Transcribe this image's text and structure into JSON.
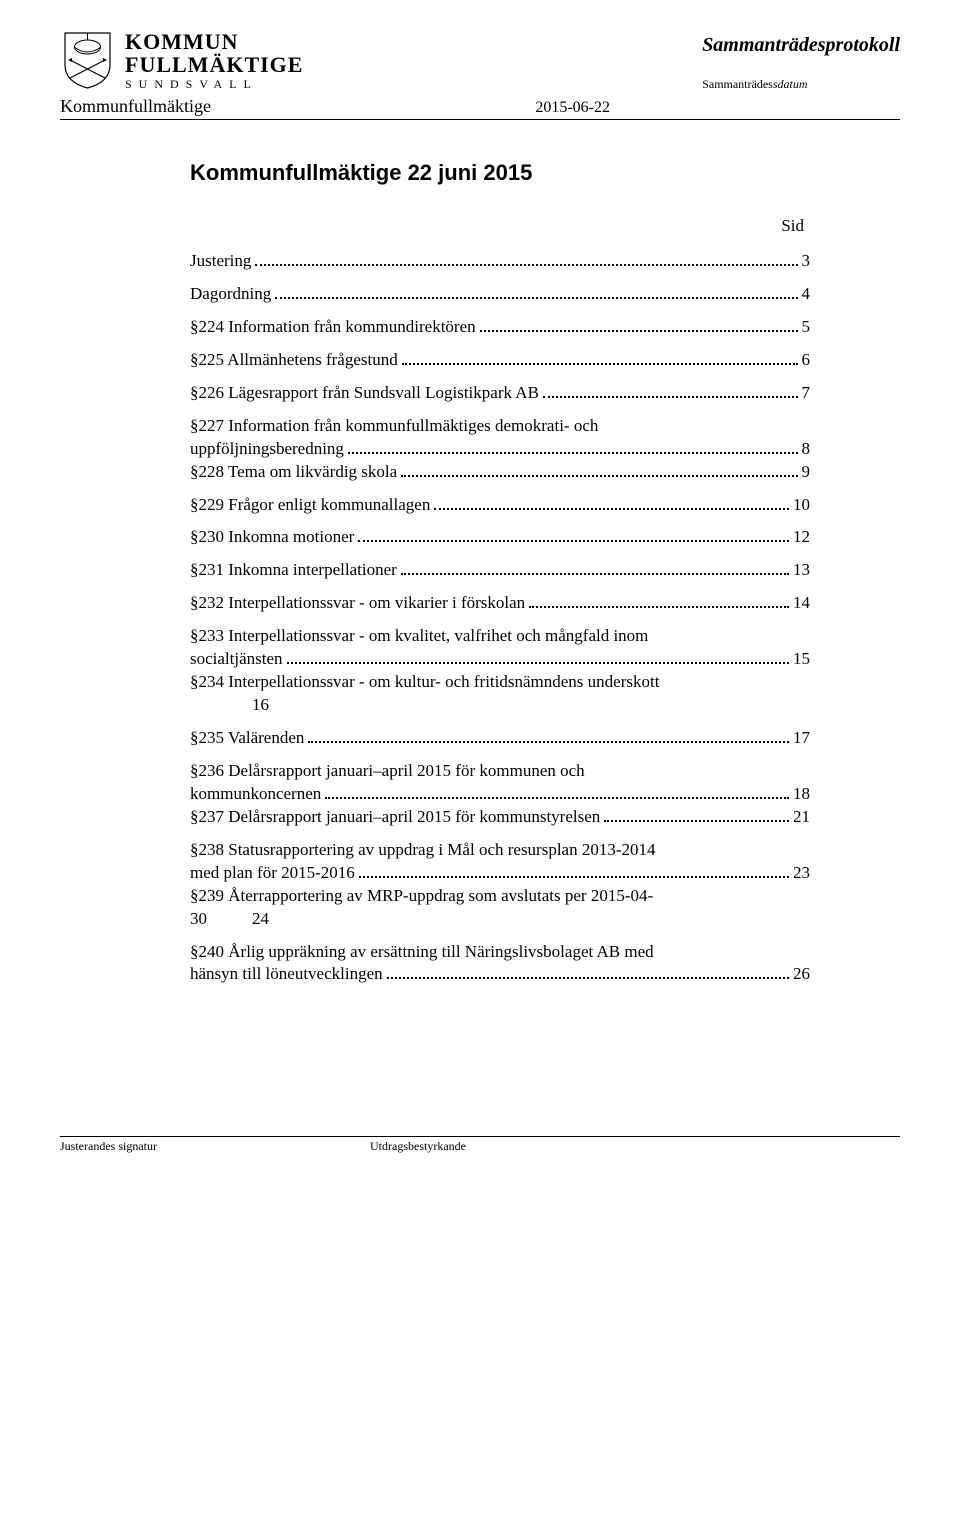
{
  "header": {
    "logo": {
      "line1": "KOMMUN",
      "line2": "FULLMÄKTIGE",
      "line3": "SUNDSVALL"
    },
    "protocol_title": "Sammanträdesprotokoll",
    "date_label_plain": "Sammanträdes",
    "date_label_italic": "sdatum",
    "body_name": "Kommunfullmäktige",
    "meeting_date": "2015-06-22"
  },
  "document": {
    "title": "Kommunfullmäktige 22 juni 2015",
    "sid_label": "Sid"
  },
  "toc": [
    {
      "text": "Justering",
      "page": "3",
      "leader": true
    },
    {
      "text": "Dagordning",
      "page": "4",
      "leader": true
    },
    {
      "text": "§224   Information från kommundirektören",
      "page": "5",
      "leader": true
    },
    {
      "text": "§225   Allmänhetens frågestund",
      "page": "6",
      "leader": true
    },
    {
      "text": "§226   Lägesrapport från Sundsvall Logistikpark AB",
      "page": "7",
      "leader": true
    },
    {
      "text_l1": "§227   Information från kommunfullmäktiges demokrati- och",
      "text_l2": "uppföljningsberedning",
      "page": "8",
      "leader": true,
      "multi": true
    },
    {
      "text": "§228   Tema om likvärdig skola",
      "page": "9",
      "leader": true
    },
    {
      "text": "§229   Frågor enligt kommunallagen",
      "page": "10",
      "leader": true
    },
    {
      "text": "§230   Inkomna motioner",
      "page": "12",
      "leader": true
    },
    {
      "text": "§231   Inkomna interpellationer",
      "page": "13",
      "leader": true
    },
    {
      "text": "§232   Interpellationssvar - om vikarier i förskolan",
      "page": "14",
      "leader": true
    },
    {
      "text_l1": "§233   Interpellationssvar - om kvalitet, valfrihet och mångfald inom",
      "text_l2": "socialtjänsten",
      "page": "15",
      "leader": true,
      "multi": true
    },
    {
      "text_l1": "§234   Interpellationssvar - om kultur- och fritidsnämndens underskott",
      "text_l2": "16",
      "page": "",
      "leader": false,
      "multi": true,
      "indent2": true
    },
    {
      "text": "§235   Valärenden",
      "page": "17",
      "leader": true
    },
    {
      "text_l1": "§236   Delårsrapport januari–april 2015 för kommunen och",
      "text_l2": "kommunkoncernen",
      "page": "18",
      "leader": true,
      "multi": true
    },
    {
      "text": "§237   Delårsrapport januari–april 2015 för kommunstyrelsen",
      "page": "21",
      "leader": true
    },
    {
      "text_l1": "§238   Statusrapportering av uppdrag i Mål och resursplan 2013-2014",
      "text_l2": "med plan för 2015-2016",
      "page": "23",
      "leader": true,
      "multi": true
    },
    {
      "text_l1": "§239   Återrapportering av MRP-uppdrag som avslutats per 2015-04-",
      "text_l2a": "30",
      "text_l2b": "24",
      "page": "",
      "leader": false,
      "multi": true,
      "split30": true
    },
    {
      "text_l1": "§240   Årlig uppräkning av ersättning till Näringslivsbolaget AB med",
      "text_l2": "hänsyn till löneutvecklingen",
      "page": "26",
      "leader": true,
      "multi": true
    }
  ],
  "footer": {
    "left": "Justerandes signatur",
    "right": "Utdragsbestyrkande"
  },
  "colors": {
    "text": "#000000",
    "background": "#ffffff",
    "rule": "#000000"
  }
}
